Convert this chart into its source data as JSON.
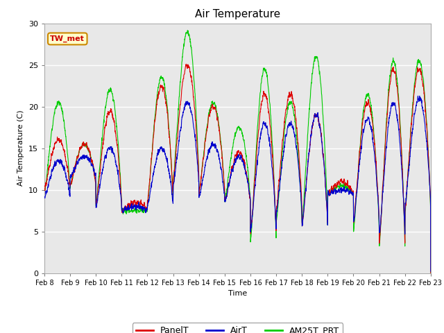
{
  "title": "Air Temperature",
  "xlabel": "Time",
  "ylabel": "Air Temperature (C)",
  "ylim": [
    0,
    30
  ],
  "fig_facecolor": "#ffffff",
  "plot_bg_color": "#e8e8e8",
  "annotation_text": "TW_met",
  "annotation_bg": "#ffffcc",
  "annotation_border": "#cc8800",
  "annotation_text_color": "#cc0000",
  "series_colors": {
    "PanelT": "#dd0000",
    "AirT": "#0000cc",
    "AM25T_PRT": "#00cc00"
  },
  "xtick_labels": [
    "Feb 8",
    "Feb 9",
    "Feb 10",
    "Feb 11",
    "Feb 12",
    "Feb 13",
    "Feb 14",
    "Feb 15",
    "Feb 16",
    "Feb 17",
    "Feb 18",
    "Feb 19",
    "Feb 20",
    "Feb 21",
    "Feb 22",
    "Feb 23"
  ],
  "ytick_labels": [
    0,
    5,
    10,
    15,
    20,
    25,
    30
  ],
  "legend_entries": [
    "PanelT",
    "AirT",
    "AM25T_PRT"
  ],
  "n_days": 15,
  "day_profiles": [
    {
      "label": "Feb8",
      "p_min": 10.0,
      "p_max": 16.0,
      "a_min": 9.0,
      "a_max": 13.5,
      "g_min": 9.5,
      "g_max": 20.5,
      "peaks": [
        0.35,
        0.75
      ],
      "troughs": [
        0.6
      ]
    },
    {
      "label": "Feb9",
      "p_min": 10.5,
      "p_max": 15.5,
      "a_min": 11.5,
      "a_max": 14.0,
      "g_min": 10.5,
      "g_max": 15.5,
      "peaks": [
        0.4
      ],
      "troughs": [
        0.65
      ]
    },
    {
      "label": "Feb10",
      "p_min": 8.0,
      "p_max": 19.5,
      "a_min": 8.0,
      "a_max": 15.0,
      "g_min": 8.0,
      "g_max": 22.0,
      "peaks": [
        0.55
      ],
      "troughs": [
        0.15
      ]
    },
    {
      "label": "Feb11",
      "p_min": 7.5,
      "p_max": 8.5,
      "a_min": 7.5,
      "a_max": 8.0,
      "g_min": 7.5,
      "g_max": 7.5,
      "peaks": [
        0.5
      ],
      "troughs": [
        0.0
      ]
    },
    {
      "label": "Feb12",
      "p_min": 8.5,
      "p_max": 22.5,
      "a_min": 8.0,
      "a_max": 15.0,
      "g_min": 8.0,
      "g_max": 23.5,
      "peaks": [
        0.6
      ],
      "troughs": [
        0.1
      ]
    },
    {
      "label": "Feb13",
      "p_min": 11.0,
      "p_max": 25.0,
      "a_min": 10.5,
      "a_max": 20.5,
      "g_min": 11.0,
      "g_max": 29.0,
      "peaks": [
        0.55
      ],
      "troughs": [
        0.2
      ]
    },
    {
      "label": "Feb14",
      "p_min": 9.5,
      "p_max": 20.0,
      "a_min": 9.0,
      "a_max": 15.5,
      "g_min": 9.5,
      "g_max": 20.5,
      "peaks": [
        0.5
      ],
      "troughs": [
        0.15
      ]
    },
    {
      "label": "Feb15",
      "p_min": 8.5,
      "p_max": 14.5,
      "a_min": 8.5,
      "a_max": 14.0,
      "g_min": 8.5,
      "g_max": 17.5,
      "peaks": [
        0.5
      ],
      "troughs": [
        0.2
      ]
    },
    {
      "label": "Feb16",
      "p_min": 4.5,
      "p_max": 21.5,
      "a_min": 5.0,
      "a_max": 18.0,
      "g_min": 3.5,
      "g_max": 24.5,
      "peaks": [
        0.55
      ],
      "troughs": [
        0.1
      ]
    },
    {
      "label": "Feb17",
      "p_min": 7.5,
      "p_max": 21.5,
      "a_min": 7.0,
      "a_max": 18.0,
      "g_min": 6.0,
      "g_max": 20.5,
      "peaks": [
        0.5
      ],
      "troughs": [
        0.2
      ]
    },
    {
      "label": "Feb18",
      "p_min": 5.5,
      "p_max": 19.0,
      "a_min": 5.5,
      "a_max": 19.0,
      "g_min": 5.5,
      "g_max": 26.0,
      "peaks": [
        0.55
      ],
      "troughs": [
        0.15
      ]
    },
    {
      "label": "Feb19",
      "p_min": 9.5,
      "p_max": 11.0,
      "a_min": 9.5,
      "a_max": 10.0,
      "g_min": 9.5,
      "g_max": 10.5,
      "peaks": [
        0.5
      ],
      "troughs": [
        0.0
      ]
    },
    {
      "label": "Feb20",
      "p_min": 6.0,
      "p_max": 20.5,
      "a_min": 6.0,
      "a_max": 18.5,
      "g_min": 5.0,
      "g_max": 21.5,
      "peaks": [
        0.55
      ],
      "troughs": [
        0.15
      ]
    },
    {
      "label": "Feb21",
      "p_min": 3.5,
      "p_max": 24.5,
      "a_min": 4.5,
      "a_max": 20.5,
      "g_min": 3.0,
      "g_max": 25.5,
      "peaks": [
        0.55
      ],
      "troughs": [
        0.1
      ]
    },
    {
      "label": "Feb22",
      "p_min": 7.5,
      "p_max": 24.5,
      "a_min": 8.0,
      "a_max": 21.0,
      "g_min": 7.0,
      "g_max": 25.5,
      "peaks": [
        0.5
      ],
      "troughs": [
        0.0
      ]
    }
  ]
}
